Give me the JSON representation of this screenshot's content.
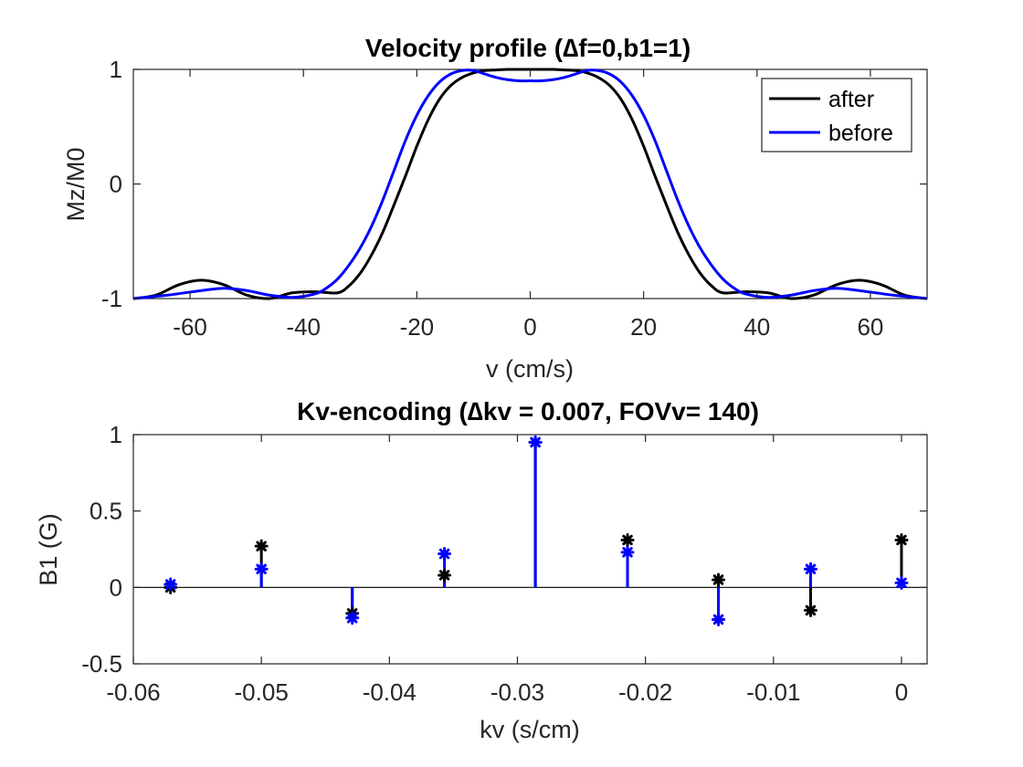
{
  "chart_data": [
    {
      "type": "line",
      "title": "Velocity profile (∆f=0,b1=1)",
      "xlabel": "v (cm/s)",
      "ylabel": "Mz/M0",
      "xlim": [
        -70,
        70
      ],
      "ylim": [
        -1,
        1
      ],
      "xticks": [
        "-60",
        "-40",
        "-20",
        "0",
        "20",
        "40",
        "60"
      ],
      "yticks": [
        "-1",
        "0",
        "1"
      ],
      "grid": false,
      "legend": "top-right",
      "series": [
        {
          "name": "after",
          "color": "#000000",
          "x": [
            -70,
            -66,
            -62,
            -58,
            -54,
            -50,
            -46,
            -42,
            -38,
            -34,
            -32,
            -30,
            -28,
            -26,
            -24,
            -22,
            -20,
            -18,
            -16,
            -14,
            -12,
            -10,
            -8,
            -6,
            -4,
            -2,
            0,
            2,
            4,
            6,
            8,
            10,
            12,
            14,
            16,
            18,
            20,
            22,
            24,
            26,
            28,
            30,
            32,
            34,
            38,
            42,
            46,
            50,
            54,
            58,
            62,
            66,
            70
          ],
          "y": [
            -1.0,
            -0.97,
            -0.88,
            -0.84,
            -0.88,
            -0.97,
            -1.0,
            -0.95,
            -0.94,
            -0.95,
            -0.89,
            -0.78,
            -0.62,
            -0.42,
            -0.18,
            0.07,
            0.33,
            0.56,
            0.74,
            0.86,
            0.93,
            0.97,
            0.99,
            0.995,
            1.0,
            1.0,
            1.0,
            1.0,
            1.0,
            0.995,
            0.99,
            0.97,
            0.93,
            0.86,
            0.74,
            0.56,
            0.33,
            0.07,
            -0.18,
            -0.42,
            -0.62,
            -0.78,
            -0.89,
            -0.95,
            -0.94,
            -0.95,
            -1.0,
            -0.97,
            -0.88,
            -0.84,
            -0.88,
            -0.97,
            -1.0
          ]
        },
        {
          "name": "before",
          "color": "#0000ff",
          "x": [
            -70,
            -64,
            -58,
            -54,
            -50,
            -46,
            -42,
            -38,
            -36,
            -34,
            -32,
            -30,
            -28,
            -26,
            -24,
            -22,
            -20,
            -18,
            -16,
            -14,
            -12,
            -10,
            -8,
            -6,
            -4,
            -2,
            0,
            2,
            4,
            6,
            8,
            10,
            12,
            14,
            16,
            18,
            20,
            22,
            24,
            26,
            28,
            30,
            32,
            34,
            36,
            38,
            42,
            46,
            50,
            54,
            58,
            64,
            70
          ],
          "y": [
            -1.0,
            -0.97,
            -0.93,
            -0.91,
            -0.93,
            -0.97,
            -0.99,
            -0.96,
            -0.91,
            -0.83,
            -0.71,
            -0.56,
            -0.37,
            -0.14,
            0.12,
            0.38,
            0.6,
            0.77,
            0.89,
            0.96,
            0.99,
            0.99,
            0.96,
            0.93,
            0.91,
            0.9,
            0.9,
            0.9,
            0.91,
            0.93,
            0.96,
            0.99,
            0.99,
            0.96,
            0.89,
            0.77,
            0.6,
            0.38,
            0.12,
            -0.14,
            -0.37,
            -0.56,
            -0.71,
            -0.83,
            -0.91,
            -0.96,
            -0.99,
            -0.97,
            -0.93,
            -0.91,
            -0.93,
            -0.97,
            -1.0
          ]
        }
      ]
    },
    {
      "type": "stem",
      "title": "Kv-encoding (∆kv = 0.007, FOVv= 140)",
      "xlabel": "kv (s/cm)",
      "ylabel": "B1 (G)",
      "xlim": [
        -0.06,
        0.002
      ],
      "ylim": [
        -0.5,
        1
      ],
      "xticks": [
        "-0.06",
        "-0.05",
        "-0.04",
        "-0.03",
        "-0.02",
        "-0.01",
        "0"
      ],
      "yticks": [
        "-0.5",
        "0",
        "0.5",
        "1"
      ],
      "grid": false,
      "x": [
        -0.0571,
        -0.05,
        -0.0429,
        -0.0357,
        -0.0286,
        -0.0214,
        -0.0143,
        -0.0071,
        0.0
      ],
      "series": [
        {
          "color": "#000000",
          "values": [
            0.0,
            0.27,
            -0.17,
            0.08,
            0.95,
            0.31,
            0.05,
            -0.15,
            0.31
          ]
        },
        {
          "color": "#0000ff",
          "values": [
            0.02,
            0.12,
            -0.2,
            0.22,
            0.95,
            0.23,
            -0.21,
            0.12,
            0.03
          ]
        }
      ]
    }
  ]
}
